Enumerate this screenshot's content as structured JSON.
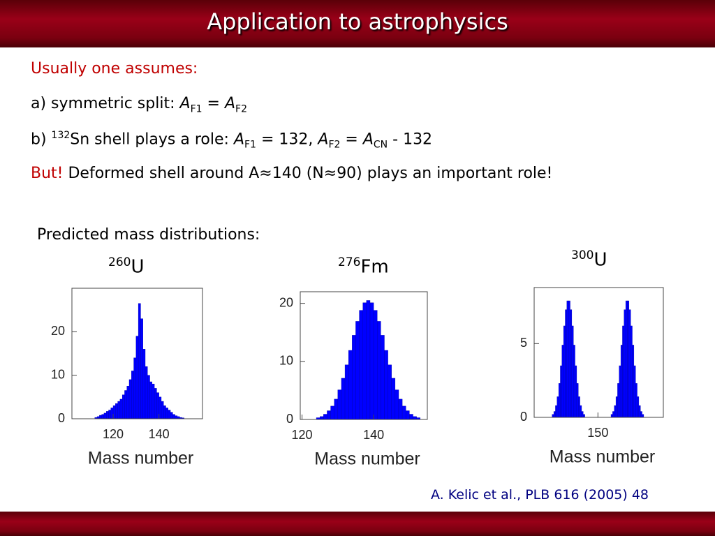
{
  "header": {
    "title": "Application to astrophysics"
  },
  "body": {
    "lines": [
      [
        {
          "text": "Usually one assumes:",
          "style": "red"
        }
      ],
      [
        {
          "text": "a) symmetric split: ",
          "style": "plain"
        },
        {
          "text": "A",
          "style": "italic"
        },
        {
          "text": "F1",
          "style": "sub"
        },
        {
          "text": " = ",
          "style": "plain"
        },
        {
          "text": "A",
          "style": "italic"
        },
        {
          "text": "F2",
          "style": "sub"
        }
      ],
      [
        {
          "text": "b) ",
          "style": "plain"
        },
        {
          "text": "132",
          "style": "sup"
        },
        {
          "text": "Sn shell plays a role: ",
          "style": "plain"
        },
        {
          "text": "A",
          "style": "italic"
        },
        {
          "text": "F1",
          "style": "sub"
        },
        {
          "text": " = 132, ",
          "style": "plain"
        },
        {
          "text": "A",
          "style": "italic"
        },
        {
          "text": "F2",
          "style": "sub"
        },
        {
          "text": " = ",
          "style": "plain"
        },
        {
          "text": "A",
          "style": "italic"
        },
        {
          "text": "CN",
          "style": "sub"
        },
        {
          "text": " - 132",
          "style": "plain"
        }
      ],
      [
        {
          "text": "But!",
          "style": "red"
        },
        {
          "text": " Deformed shell around A≈140 (N≈90) plays an important role!",
          "style": "plain"
        }
      ]
    ],
    "subheading": "Predicted mass distributions:",
    "citation": "A. Kelic et al., PLB 616 (2005) 48"
  },
  "chart_data": [
    {
      "type": "histogram",
      "title_superscript": "260",
      "title": "U",
      "x_label": "Mass number",
      "color": "#0000ff",
      "bins": [
        112,
        113,
        114,
        115,
        116,
        117,
        118,
        119,
        120,
        121,
        122,
        123,
        124,
        125,
        126,
        127,
        128,
        129,
        130,
        131,
        132,
        133,
        134,
        135,
        136,
        137,
        138,
        139,
        140,
        141,
        142,
        143,
        144,
        145,
        146,
        147,
        148,
        149,
        150,
        151
      ],
      "values": [
        0.3,
        0.5,
        0.8,
        1,
        1.3,
        1.7,
        2,
        2.5,
        3,
        3.5,
        4,
        4.5,
        5.5,
        6.5,
        7.5,
        9,
        11,
        14,
        19,
        26.5,
        23,
        16,
        12,
        10,
        8.5,
        8,
        7,
        6,
        5,
        4,
        3,
        2.5,
        2,
        1.5,
        1,
        0.7,
        0.5,
        0.3,
        0.2
      ],
      "xlim": [
        102,
        159
      ],
      "ylim": [
        0,
        30
      ],
      "xticks": [
        120,
        140
      ],
      "yticks": [
        0,
        10,
        20
      ]
    },
    {
      "type": "histogram",
      "title_superscript": "276",
      "title": "Fm",
      "x_label": "Mass number",
      "color": "#0000ff",
      "bins": [
        124,
        125,
        126,
        127,
        128,
        129,
        130,
        131,
        132,
        133,
        134,
        135,
        136,
        137,
        138,
        139,
        140,
        141,
        142,
        143,
        144,
        145,
        146,
        147,
        148,
        149,
        150,
        151,
        152,
        153
      ],
      "values": [
        0.3,
        0.5,
        0.9,
        1.5,
        2.3,
        3.5,
        5.1,
        7.1,
        9.4,
        11.9,
        14.5,
        16.9,
        18.8,
        20.1,
        20.5,
        20.1,
        18.8,
        16.9,
        14.5,
        11.9,
        9.4,
        7.1,
        5.1,
        3.5,
        2.3,
        1.5,
        0.9,
        0.5,
        0.3
      ],
      "xlim": [
        119.5,
        155
      ],
      "ylim": [
        0,
        22
      ],
      "xticks": [
        120,
        140
      ],
      "yticks": [
        0,
        10,
        20
      ]
    },
    {
      "type": "histogram",
      "title_superscript": "300",
      "title": "U",
      "x_label": "Mass number",
      "color": "#0000ff",
      "bins": [
        122,
        123,
        124,
        125,
        126,
        127,
        128,
        129,
        130,
        131,
        132,
        133,
        134,
        135,
        136,
        137,
        138,
        139,
        140,
        141,
        142,
        143,
        144,
        145,
        146,
        147,
        148,
        149,
        150,
        151,
        152,
        153,
        154,
        155,
        156,
        157,
        158,
        159,
        160,
        161,
        162,
        163,
        164,
        165,
        166,
        167,
        168,
        169,
        170,
        171,
        172,
        173,
        174,
        175,
        176,
        177,
        178
      ],
      "values": [
        0.2,
        0.4,
        0.8,
        1.4,
        2.3,
        3.5,
        4.9,
        6.2,
        7.3,
        7.9,
        7.9,
        7.3,
        6.2,
        4.9,
        3.5,
        2.3,
        1.4,
        0.8,
        0.4,
        0.2,
        0,
        0,
        0,
        0,
        0,
        0,
        0,
        0,
        0,
        0,
        0,
        0,
        0,
        0,
        0,
        0,
        0.2,
        0.4,
        0.8,
        1.4,
        2.3,
        3.5,
        4.9,
        6.2,
        7.3,
        7.9,
        7.9,
        7.3,
        6.2,
        4.9,
        3.5,
        2.3,
        1.4,
        0.8,
        0.4,
        0.2
      ],
      "xlim": [
        111,
        190
      ],
      "ylim": [
        0,
        8.8
      ],
      "xticks": [
        150
      ],
      "yticks": [
        0,
        5
      ]
    }
  ]
}
